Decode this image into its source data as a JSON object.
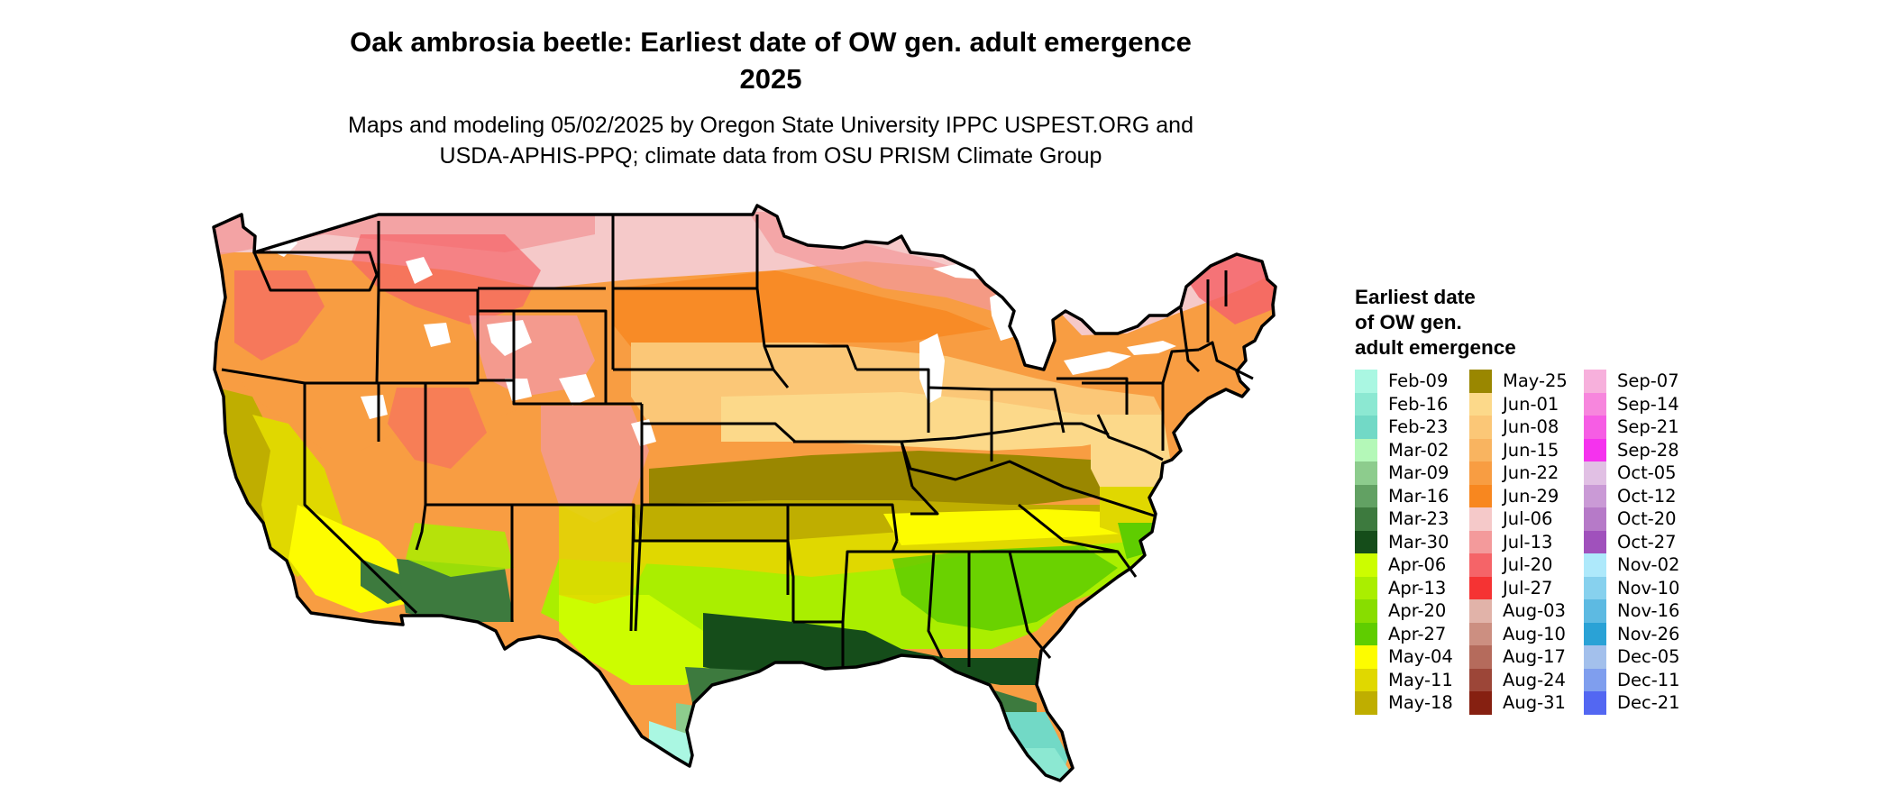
{
  "title_line1": "Oak ambrosia beetle: Earliest date of OW gen. adult emergence",
  "title_line2": "2025",
  "subtitle_line1": "Maps and modeling 05/02/2025 by Oregon State University IPPC USPEST.ORG and",
  "subtitle_line2": "USDA-APHIS-PPQ; climate data from OSU PRISM Climate Group",
  "legend": {
    "title_lines": [
      "Earliest date",
      "of OW gen.",
      "adult emergence"
    ],
    "columns": [
      [
        {
          "label": "Feb-09",
          "color": "#aaf7e2"
        },
        {
          "label": "Feb-16",
          "color": "#8ce8d2"
        },
        {
          "label": "Feb-23",
          "color": "#72d9c6"
        },
        {
          "label": "Mar-02",
          "color": "#b4f8b8"
        },
        {
          "label": "Mar-09",
          "color": "#8dcc8d"
        },
        {
          "label": "Mar-16",
          "color": "#62a163"
        },
        {
          "label": "Mar-23",
          "color": "#3d7a3e"
        },
        {
          "label": "Mar-30",
          "color": "#154d1a"
        },
        {
          "label": "Apr-06",
          "color": "#ccfd00"
        },
        {
          "label": "Apr-13",
          "color": "#aaee00"
        },
        {
          "label": "Apr-20",
          "color": "#88dd00"
        },
        {
          "label": "Apr-27",
          "color": "#5fcd00"
        },
        {
          "label": "May-04",
          "color": "#fdfc00"
        },
        {
          "label": "May-11",
          "color": "#e0d800"
        },
        {
          "label": "May-18",
          "color": "#bfae00"
        }
      ],
      [
        {
          "label": "May-25",
          "color": "#9a8700"
        },
        {
          "label": "Jun-01",
          "color": "#fcd98a"
        },
        {
          "label": "Jun-08",
          "color": "#fbc777"
        },
        {
          "label": "Jun-15",
          "color": "#f9b460"
        },
        {
          "label": "Jun-22",
          "color": "#f89d42"
        },
        {
          "label": "Jun-29",
          "color": "#f8871f"
        },
        {
          "label": "Jul-06",
          "color": "#f5c9c9"
        },
        {
          "label": "Jul-13",
          "color": "#f39a9b"
        },
        {
          "label": "Jul-20",
          "color": "#f56468"
        },
        {
          "label": "Jul-27",
          "color": "#f53333"
        },
        {
          "label": "Aug-03",
          "color": "#e1b3a9"
        },
        {
          "label": "Aug-10",
          "color": "#cc8f81"
        },
        {
          "label": "Aug-17",
          "color": "#b56b5c"
        },
        {
          "label": "Aug-24",
          "color": "#9c4638"
        },
        {
          "label": "Aug-31",
          "color": "#862011"
        }
      ],
      [
        {
          "label": "Sep-07",
          "color": "#f7b0dc"
        },
        {
          "label": "Sep-14",
          "color": "#f786dd"
        },
        {
          "label": "Sep-21",
          "color": "#f65de4"
        },
        {
          "label": "Sep-28",
          "color": "#f532ee"
        },
        {
          "label": "Oct-05",
          "color": "#e1c0e4"
        },
        {
          "label": "Oct-12",
          "color": "#ca9ad6"
        },
        {
          "label": "Oct-20",
          "color": "#b67ac8"
        },
        {
          "label": "Oct-27",
          "color": "#a051bc"
        },
        {
          "label": "Nov-02",
          "color": "#aee9fb"
        },
        {
          "label": "Nov-10",
          "color": "#87d1ee"
        },
        {
          "label": "Nov-16",
          "color": "#5dbae2"
        },
        {
          "label": "Nov-26",
          "color": "#2aa2d6"
        },
        {
          "label": "Dec-05",
          "color": "#a3c0ec"
        },
        {
          "label": "Dec-11",
          "color": "#7f9eee"
        },
        {
          "label": "Dec-21",
          "color": "#5367f2"
        }
      ]
    ]
  },
  "map_colors": {
    "outline": "#000000",
    "water_and_lakes": "#ffffff",
    "high_elevation": "#ffffff"
  }
}
